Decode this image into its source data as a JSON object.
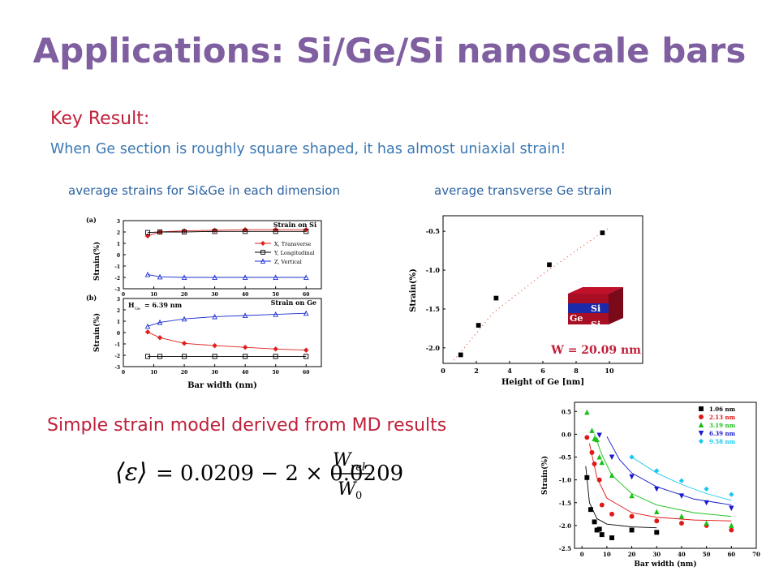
{
  "slide": {
    "title": "Applications: Si/Ge/Si nanoscale bars",
    "key_result": "Key Result:",
    "subtitle": "When Ge section is roughly square shaped, it has almost uniaxial strain!",
    "caption_left": "average strains for Si&Ge in each dimension",
    "caption_right": "average transverse Ge strain",
    "model_heading": "Simple strain model derived from MD results"
  },
  "formula": {
    "lhs": "⟨ε⟩",
    "eq": "= 0.0209 − 2 × 0.0209",
    "num": "W",
    "num_sub": "rel",
    "den": "W",
    "den_sub": "0"
  },
  "colors": {
    "title": "#7f5fa0",
    "accent_red": "#c0203a",
    "accent_blue": "#3a78b4"
  },
  "chart_data": [
    {
      "type": "line",
      "panel_label": "(a)",
      "annotation": "Strain on Si",
      "ylabel": "Strain(%)",
      "xlabel": "",
      "xlim": [
        0,
        65
      ],
      "ylim": [
        -3,
        3
      ],
      "xticks": [
        "0",
        "10",
        "20",
        "30",
        "40",
        "50",
        "60"
      ],
      "yticks": [
        "-3",
        "-2",
        "-1",
        "0",
        "1",
        "2",
        "3"
      ],
      "x": [
        8,
        12,
        20,
        30,
        40,
        50,
        60
      ],
      "series": [
        {
          "name": "X, Transverse",
          "color": "#e0201c",
          "marker": "diamond",
          "values": [
            1.65,
            2.0,
            2.1,
            2.15,
            2.2,
            2.2,
            2.2
          ]
        },
        {
          "name": "Y, Longitudinal",
          "color": "#000000",
          "marker": "square-open",
          "values": [
            1.95,
            2.0,
            2.0,
            2.05,
            2.05,
            2.05,
            2.05
          ]
        },
        {
          "name": "Z, Vertical",
          "color": "#1c2fd0",
          "marker": "triangle-open",
          "values": [
            -1.75,
            -1.95,
            -2.0,
            -2.0,
            -2.0,
            -2.0,
            -2.0
          ]
        }
      ]
    },
    {
      "type": "line",
      "panel_label": "(b)",
      "annotation": "Strain on Ge",
      "inset_text": "H",
      "inset_sub": "Ge",
      "inset_value": "= 6.39 nm",
      "ylabel": "Strain(%)",
      "xlabel": "Bar width (nm)",
      "xlim": [
        0,
        65
      ],
      "ylim": [
        -3,
        3
      ],
      "xticks": [
        "0",
        "10",
        "20",
        "30",
        "40",
        "50",
        "60"
      ],
      "yticks": [
        "-3",
        "-2",
        "-1",
        "0",
        "1",
        "2",
        "3"
      ],
      "x": [
        8,
        12,
        20,
        30,
        40,
        50,
        60
      ],
      "series": [
        {
          "name": "X",
          "color": "#e0201c",
          "marker": "diamond",
          "values": [
            0.05,
            -0.45,
            -0.95,
            -1.15,
            -1.3,
            -1.45,
            -1.55
          ]
        },
        {
          "name": "Y",
          "color": "#000000",
          "marker": "square-open",
          "values": [
            -2.1,
            -2.1,
            -2.1,
            -2.1,
            -2.1,
            -2.1,
            -2.1
          ]
        },
        {
          "name": "Z",
          "color": "#1c2fd0",
          "marker": "triangle-open",
          "values": [
            0.55,
            0.9,
            1.2,
            1.4,
            1.5,
            1.6,
            1.7
          ]
        }
      ]
    },
    {
      "type": "scatter",
      "xlabel": "Height of Ge [nm]",
      "ylabel": "Strain(%)",
      "xlim": [
        0,
        12
      ],
      "ylim": [
        -2.2,
        -0.3
      ],
      "xticks": [
        "0",
        "2",
        "4",
        "6",
        "8",
        "10"
      ],
      "yticks": [
        "-0.5",
        "-1.0",
        "-1.5",
        "-2.0"
      ],
      "points": [
        {
          "x": 1.06,
          "y": -2.09
        },
        {
          "x": 2.13,
          "y": -1.71
        },
        {
          "x": 3.19,
          "y": -1.36
        },
        {
          "x": 6.39,
          "y": -0.93
        },
        {
          "x": 9.58,
          "y": -0.52
        }
      ],
      "fit_line": [
        {
          "x": 0.5,
          "y": -2.2
        },
        {
          "x": 3,
          "y": -1.55
        },
        {
          "x": 6,
          "y": -1.05
        },
        {
          "x": 10,
          "y": -0.45
        }
      ],
      "inset_labels": [
        "Si",
        "Ge",
        "Si"
      ],
      "annotation": "W = 20.09 nm"
    },
    {
      "type": "scatter",
      "xlabel": "Bar width (nm)",
      "ylabel": "Strain(%)",
      "xlim": [
        -3,
        70
      ],
      "ylim": [
        -2.5,
        0.7
      ],
      "xticks": [
        "0",
        "10",
        "20",
        "30",
        "40",
        "50",
        "60",
        "70"
      ],
      "yticks": [
        "0.5",
        "0.0",
        "-0.5",
        "-1.0",
        "-1.5",
        "-2.0",
        "-2.5"
      ],
      "legend_position": "top-right",
      "series": [
        {
          "name": "1.06 nm",
          "color": "#000000",
          "marker": "square",
          "points": [
            [
              2,
              -0.95
            ],
            [
              3.5,
              -1.65
            ],
            [
              5,
              -1.92
            ],
            [
              6,
              -2.1
            ],
            [
              7,
              -2.08
            ],
            [
              8,
              -2.2
            ],
            [
              12,
              -2.27
            ],
            [
              20,
              -2.1
            ],
            [
              30,
              -2.15
            ]
          ],
          "fit": [
            [
              1.5,
              -0.7
            ],
            [
              3,
              -1.5
            ],
            [
              6,
              -1.85
            ],
            [
              10,
              -1.97
            ],
            [
              20,
              -2.03
            ],
            [
              30,
              -2.05
            ]
          ]
        },
        {
          "name": "2.13 nm",
          "color": "#e01818",
          "marker": "circle",
          "points": [
            [
              2,
              -0.07
            ],
            [
              4,
              -0.4
            ],
            [
              5,
              -0.65
            ],
            [
              7,
              -1.0
            ],
            [
              8,
              -1.55
            ],
            [
              12,
              -1.75
            ],
            [
              20,
              -1.8
            ],
            [
              30,
              -1.9
            ],
            [
              40,
              -1.95
            ],
            [
              50,
              -2.0
            ],
            [
              60,
              -2.1
            ]
          ],
          "fit": [
            [
              3,
              -0.2
            ],
            [
              6,
              -0.95
            ],
            [
              10,
              -1.4
            ],
            [
              20,
              -1.72
            ],
            [
              30,
              -1.82
            ],
            [
              45,
              -1.88
            ],
            [
              60,
              -1.9
            ]
          ]
        },
        {
          "name": "3.19 nm",
          "color": "#18c018",
          "marker": "triangle",
          "points": [
            [
              2,
              0.48
            ],
            [
              4,
              0.08
            ],
            [
              5,
              -0.1
            ],
            [
              6,
              -0.12
            ],
            [
              7,
              -0.5
            ],
            [
              8,
              -0.62
            ],
            [
              12,
              -0.9
            ],
            [
              20,
              -1.35
            ],
            [
              30,
              -1.7
            ],
            [
              40,
              -1.8
            ],
            [
              50,
              -1.95
            ],
            [
              60,
              -2.0
            ]
          ],
          "fit": [
            [
              5,
              0.0
            ],
            [
              8,
              -0.45
            ],
            [
              12,
              -0.9
            ],
            [
              20,
              -1.3
            ],
            [
              30,
              -1.55
            ],
            [
              45,
              -1.72
            ],
            [
              60,
              -1.8
            ]
          ]
        },
        {
          "name": "6.39 nm",
          "color": "#1818d0",
          "marker": "triangle-down",
          "points": [
            [
              7,
              -0.02
            ],
            [
              12,
              -0.5
            ],
            [
              20,
              -0.93
            ],
            [
              30,
              -1.2
            ],
            [
              40,
              -1.35
            ],
            [
              50,
              -1.5
            ],
            [
              60,
              -1.62
            ]
          ],
          "fit": [
            [
              10,
              -0.05
            ],
            [
              15,
              -0.55
            ],
            [
              20,
              -0.85
            ],
            [
              30,
              -1.15
            ],
            [
              45,
              -1.42
            ],
            [
              60,
              -1.55
            ]
          ]
        },
        {
          "name": "9.58 nm",
          "color": "#18c8f0",
          "marker": "diamond",
          "points": [
            [
              20,
              -0.5
            ],
            [
              30,
              -0.8
            ],
            [
              40,
              -1.02
            ],
            [
              50,
              -1.2
            ],
            [
              60,
              -1.32
            ]
          ],
          "fit": [
            [
              20,
              -0.5
            ],
            [
              30,
              -0.85
            ],
            [
              40,
              -1.1
            ],
            [
              50,
              -1.3
            ],
            [
              60,
              -1.45
            ]
          ]
        }
      ]
    }
  ]
}
